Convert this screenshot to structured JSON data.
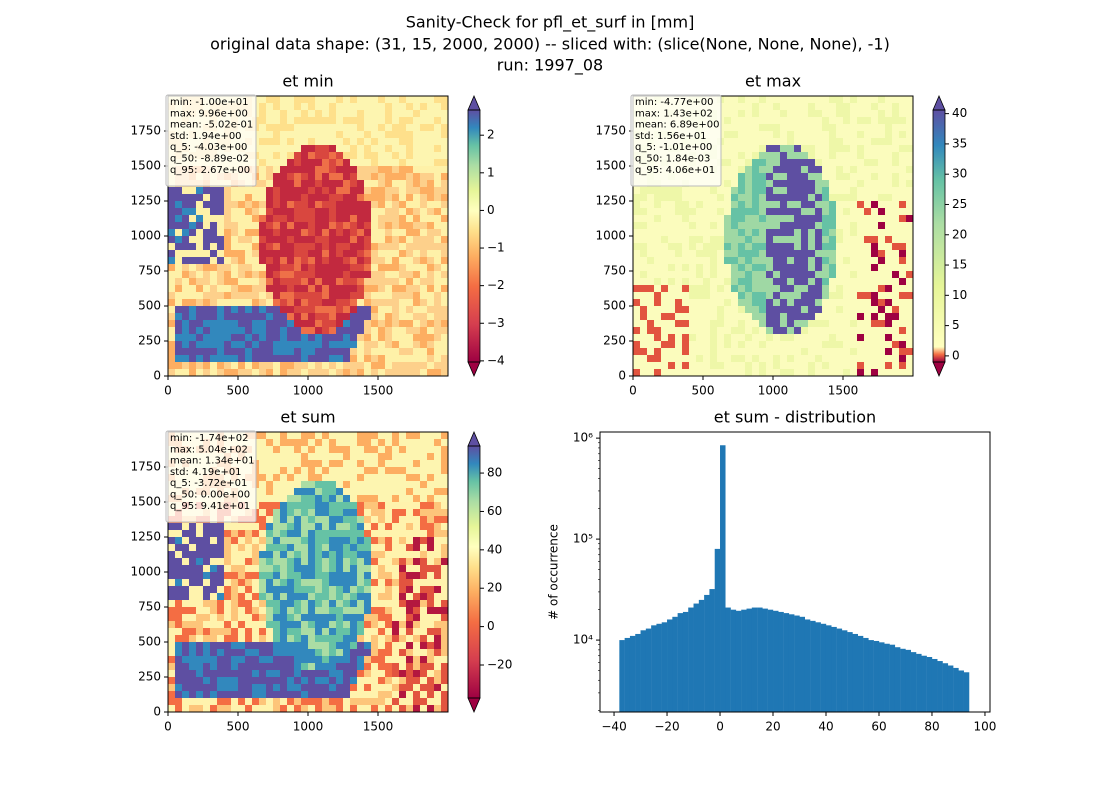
{
  "title": [
    "Sanity-Check for pfl_et_surf in [mm]",
    "original data shape: (31, 15, 2000, 2000) -- sliced with: (slice(None, None, None), -1)",
    "run: 1997_08"
  ],
  "chart_data": [
    {
      "type": "heatmap",
      "title": "et min",
      "xlim": [
        0,
        2000
      ],
      "ylim": [
        0,
        2000
      ],
      "xticks": [
        0,
        500,
        1000,
        1500
      ],
      "yticks": [
        0,
        250,
        500,
        750,
        1000,
        1250,
        1500,
        1750
      ],
      "annotations": [
        "min: -1.00e+01",
        "max: 9.96e+00",
        "mean: -5.02e-01",
        "std: 1.94e+00",
        "q_5: -4.03e+00",
        "q_50: -8.89e-02",
        "q_95: 2.67e+00"
      ],
      "colorbar": {
        "lim": [
          -4.03,
          2.67
        ],
        "ticks": [
          {
            "value": -4,
            "label": "−4"
          },
          {
            "value": -3,
            "label": "−3"
          },
          {
            "value": -2,
            "label": "−2"
          },
          {
            "value": -1,
            "label": "−1"
          },
          0,
          1,
          2
        ]
      }
    },
    {
      "type": "heatmap",
      "title": "et max",
      "xlim": [
        0,
        2000
      ],
      "ylim": [
        0,
        2000
      ],
      "xticks": [
        0,
        500,
        1000,
        1500
      ],
      "yticks": [
        0,
        250,
        500,
        750,
        1000,
        1250,
        1500,
        1750
      ],
      "annotations": [
        "min: -4.77e+00",
        "max: 1.43e+02",
        "mean: 6.89e+00",
        "std: 1.56e+01",
        "q_5: -1.01e+00",
        "q_50: 1.84e-03",
        "q_95: 4.06e+01"
      ],
      "colorbar": {
        "lim": [
          -1.01,
          40.6
        ],
        "ticks": [
          0,
          5,
          10,
          15,
          20,
          25,
          30,
          35,
          40
        ]
      }
    },
    {
      "type": "heatmap",
      "title": "et sum",
      "xlim": [
        0,
        2000
      ],
      "ylim": [
        0,
        2000
      ],
      "xticks": [
        0,
        500,
        1000,
        1500
      ],
      "yticks": [
        0,
        250,
        500,
        750,
        1000,
        1250,
        1500,
        1750
      ],
      "annotations": [
        "min: -1.74e+02",
        "max: 5.04e+02",
        "mean: 1.34e+01",
        "std: 4.19e+01",
        "q_5: -3.72e+01",
        "q_50: 0.00e+00",
        "q_95: 9.41e+01"
      ],
      "colorbar": {
        "lim": [
          -37.2,
          94.1
        ],
        "ticks": [
          {
            "value": -20,
            "label": "−20"
          },
          0,
          20,
          40,
          60,
          80
        ]
      }
    },
    {
      "type": "histogram",
      "title": "et sum - distribution",
      "y_label": "# of occurrence",
      "color": "#1f77b4",
      "log_y": true,
      "xlim": [
        -45.3,
        101.9
      ],
      "ylim": [
        1940,
        1150000
      ],
      "xticks": [
        {
          "value": -40,
          "label": "−40"
        },
        {
          "value": -20,
          "label": "−20"
        },
        0,
        20,
        40,
        60,
        80,
        100
      ],
      "yticks": [
        {
          "value": 10000,
          "label": "10⁴"
        },
        {
          "value": 100000,
          "label": "10⁵"
        },
        {
          "value": 1000000,
          "label": "10⁶"
        }
      ],
      "bins": [
        -38,
        -36,
        -34,
        -32,
        -30,
        -28,
        -26,
        -24,
        -22,
        -20,
        -18,
        -16,
        -14,
        -12,
        -10,
        -8,
        -6,
        -4,
        -2,
        0,
        2,
        4,
        6,
        8,
        10,
        12,
        14,
        16,
        18,
        20,
        22,
        24,
        26,
        28,
        30,
        32,
        34,
        36,
        38,
        40,
        42,
        44,
        46,
        48,
        50,
        52,
        54,
        56,
        58,
        60,
        62,
        64,
        66,
        68,
        70,
        72,
        74,
        76,
        78,
        80,
        82,
        84,
        86,
        88,
        90,
        92,
        94
      ],
      "values": [
        10000,
        10500,
        11000,
        11500,
        12500,
        13000,
        14000,
        14500,
        15000,
        16000,
        17000,
        18500,
        19000,
        21000,
        23000,
        25000,
        28000,
        32000,
        80000,
        850000,
        21000,
        20000,
        19500,
        20000,
        20500,
        21000,
        21000,
        20500,
        20000,
        19500,
        19000,
        18500,
        18000,
        17500,
        17000,
        16000,
        15500,
        15000,
        14500,
        14000,
        13500,
        13000,
        12500,
        12000,
        11500,
        11000,
        10500,
        10000,
        9800,
        9500,
        9200,
        9000,
        8500,
        8200,
        8000,
        7600,
        7300,
        7000,
        6800,
        6500,
        6200,
        5900,
        5600,
        5300,
        5000,
        4800
      ]
    }
  ]
}
